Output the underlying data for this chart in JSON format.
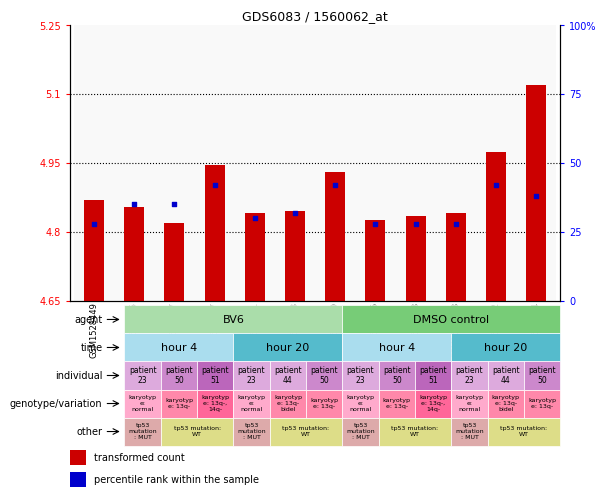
{
  "title": "GDS6083 / 1560062_at",
  "samples": [
    "GSM1528449",
    "GSM1528455",
    "GSM1528457",
    "GSM1528447",
    "GSM1528451",
    "GSM1528453",
    "GSM1528450",
    "GSM1528456",
    "GSM1528458",
    "GSM1528448",
    "GSM1528452",
    "GSM1528454"
  ],
  "bar_values": [
    4.87,
    4.855,
    4.82,
    4.945,
    4.84,
    4.845,
    4.93,
    4.825,
    4.835,
    4.84,
    4.975,
    5.12
  ],
  "dot_values": [
    28,
    35,
    35,
    42,
    30,
    32,
    42,
    28,
    28,
    28,
    42,
    38
  ],
  "ymin": 4.65,
  "ymax": 5.25,
  "y2min": 0,
  "y2max": 100,
  "yticks": [
    4.65,
    4.8,
    4.95,
    5.1,
    5.25
  ],
  "ytick_labels": [
    "4.65",
    "4.8",
    "4.95",
    "5.1",
    "5.25"
  ],
  "y2ticks": [
    0,
    25,
    50,
    75,
    100
  ],
  "y2tick_labels": [
    "0",
    "25",
    "50",
    "75",
    "100%"
  ],
  "hlines": [
    4.8,
    4.95,
    5.1
  ],
  "bar_color": "#cc0000",
  "dot_color": "#0000cc",
  "bar_bottom": 4.65,
  "agent_spans": [
    {
      "label": "BV6",
      "start": 0,
      "end": 6,
      "color": "#aaddaa"
    },
    {
      "label": "DMSO control",
      "start": 6,
      "end": 12,
      "color": "#77cc77"
    }
  ],
  "time_spans": [
    {
      "label": "hour 4",
      "start": 0,
      "end": 3,
      "color": "#aaddee"
    },
    {
      "label": "hour 20",
      "start": 3,
      "end": 6,
      "color": "#55bbcc"
    },
    {
      "label": "hour 4",
      "start": 6,
      "end": 9,
      "color": "#aaddee"
    },
    {
      "label": "hour 20",
      "start": 9,
      "end": 12,
      "color": "#55bbcc"
    }
  ],
  "individual_row": [
    {
      "label": "patient\n23",
      "color": "#ddaadd"
    },
    {
      "label": "patient\n50",
      "color": "#cc88cc"
    },
    {
      "label": "patient\n51",
      "color": "#bb66bb"
    },
    {
      "label": "patient\n23",
      "color": "#ddaadd"
    },
    {
      "label": "patient\n44",
      "color": "#ddaadd"
    },
    {
      "label": "patient\n50",
      "color": "#cc88cc"
    },
    {
      "label": "patient\n23",
      "color": "#ddaadd"
    },
    {
      "label": "patient\n50",
      "color": "#cc88cc"
    },
    {
      "label": "patient\n51",
      "color": "#bb66bb"
    },
    {
      "label": "patient\n23",
      "color": "#ddaadd"
    },
    {
      "label": "patient\n44",
      "color": "#ddaadd"
    },
    {
      "label": "patient\n50",
      "color": "#cc88cc"
    }
  ],
  "genotype_row": [
    {
      "label": "karyotyp\ne:\nnormal",
      "color": "#ffaacc"
    },
    {
      "label": "karyotyp\ne: 13q-",
      "color": "#ff88aa"
    },
    {
      "label": "karyotyp\ne: 13q-,\n14q-",
      "color": "#ff6699"
    },
    {
      "label": "karyotyp\ne:\nnormal",
      "color": "#ffaacc"
    },
    {
      "label": "karyotyp\ne: 13q-\nbidel",
      "color": "#ff88aa"
    },
    {
      "label": "karyotyp\ne: 13q-",
      "color": "#ff88aa"
    },
    {
      "label": "karyotyp\ne:\nnormal",
      "color": "#ffaacc"
    },
    {
      "label": "karyotyp\ne: 13q-",
      "color": "#ff88aa"
    },
    {
      "label": "karyotyp\ne: 13q-,\n14q-",
      "color": "#ff6699"
    },
    {
      "label": "karyotyp\ne:\nnormal",
      "color": "#ffaacc"
    },
    {
      "label": "karyotyp\ne: 13q-\nbidel",
      "color": "#ff88aa"
    },
    {
      "label": "karyotyp\ne: 13q-",
      "color": "#ff88aa"
    }
  ],
  "other_spans": [
    {
      "label": "tp53\nmutation\n: MUT",
      "color": "#ddaaaa",
      "start": 0,
      "end": 1
    },
    {
      "label": "tp53 mutation:\nWT",
      "color": "#dddd88",
      "start": 1,
      "end": 3
    },
    {
      "label": "tp53\nmutation\n: MUT",
      "color": "#ddaaaa",
      "start": 3,
      "end": 4
    },
    {
      "label": "tp53 mutation:\nWT",
      "color": "#dddd88",
      "start": 4,
      "end": 6
    },
    {
      "label": "tp53\nmutation\n: MUT",
      "color": "#ddaaaa",
      "start": 6,
      "end": 7
    },
    {
      "label": "tp53 mutation:\nWT",
      "color": "#dddd88",
      "start": 7,
      "end": 9
    },
    {
      "label": "tp53\nmutation\n: MUT",
      "color": "#ddaaaa",
      "start": 9,
      "end": 10
    },
    {
      "label": "tp53 mutation:\nWT",
      "color": "#dddd88",
      "start": 10,
      "end": 12
    }
  ],
  "row_labels": [
    "agent",
    "time",
    "individual",
    "genotype/variation",
    "other"
  ],
  "legend_items": [
    {
      "label": "transformed count",
      "color": "#cc0000"
    },
    {
      "label": "percentile rank within the sample",
      "color": "#0000cc"
    }
  ],
  "bg_color": "#ffffff"
}
